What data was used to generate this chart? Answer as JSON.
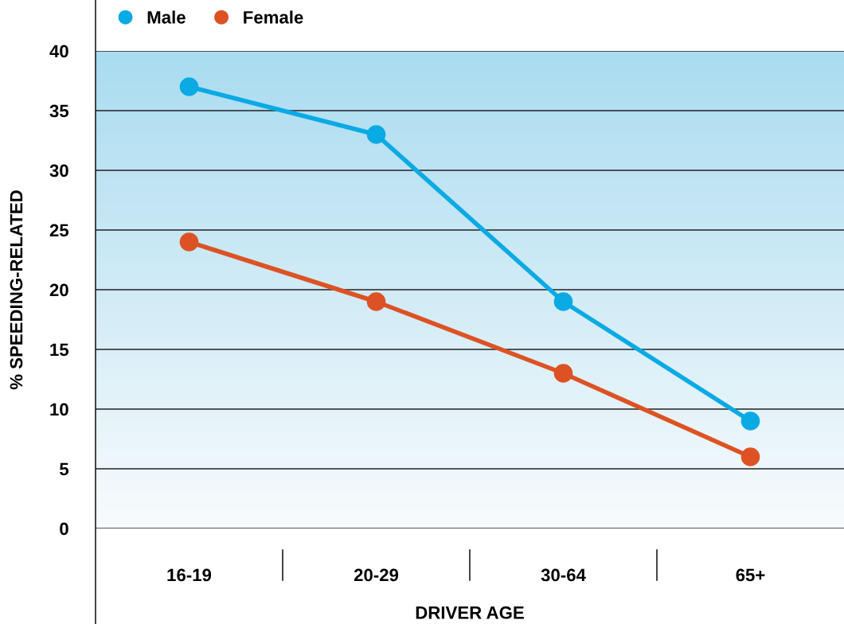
{
  "chart_data": {
    "type": "line",
    "xlabel": "DRIVER AGE",
    "ylabel": "% SPEEDING-RELATED",
    "categories": [
      "16-19",
      "20-29",
      "30-64",
      "65+"
    ],
    "series": [
      {
        "name": "Male",
        "color": "#0aaae4",
        "values": [
          37,
          33,
          19,
          9
        ]
      },
      {
        "name": "Female",
        "color": "#dd5224",
        "values": [
          24,
          19,
          13,
          6
        ]
      }
    ],
    "ylim": [
      0,
      40
    ],
    "yticks": [
      0,
      5,
      10,
      15,
      20,
      25,
      30,
      35,
      40
    ],
    "grid": "y",
    "legend": "top left",
    "marker": "circle",
    "line_style": "solid"
  }
}
